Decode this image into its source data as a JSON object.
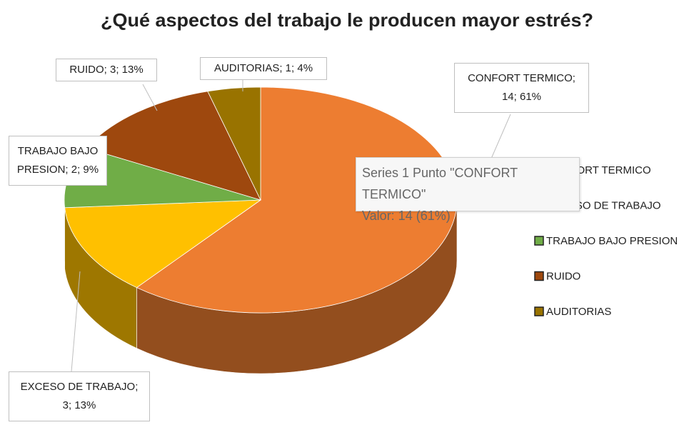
{
  "chart_data": {
    "type": "pie",
    "title": "¿Qué aspectos del trabajo le producen mayor estrés?",
    "categories": [
      "CONFORT TERMICO",
      "EXCESO DE TRABAJO",
      "TRABAJO BAJO PRESION",
      "RUIDO",
      "AUDITORIAS"
    ],
    "values": [
      14,
      3,
      2,
      3,
      1
    ],
    "value_labels": [
      "CONFORT TERMICO;\n14; 61%",
      "EXCESO DE TRABAJO;\n3; 13%",
      "TRABAJO BAJO\nPRESION; 2; 9%",
      "RUIDO; 3; 13%",
      "AUDITORIAS; 1; 4%"
    ],
    "colors": [
      "#ED7D31",
      "#FFC000",
      "#70AD47",
      "#9E480E",
      "#997300"
    ],
    "legend": "right",
    "tooltip": {
      "title": "Series 1 Punto \"CONFORT TERMICO\"",
      "text": "Valor: 14 (61%)"
    }
  }
}
